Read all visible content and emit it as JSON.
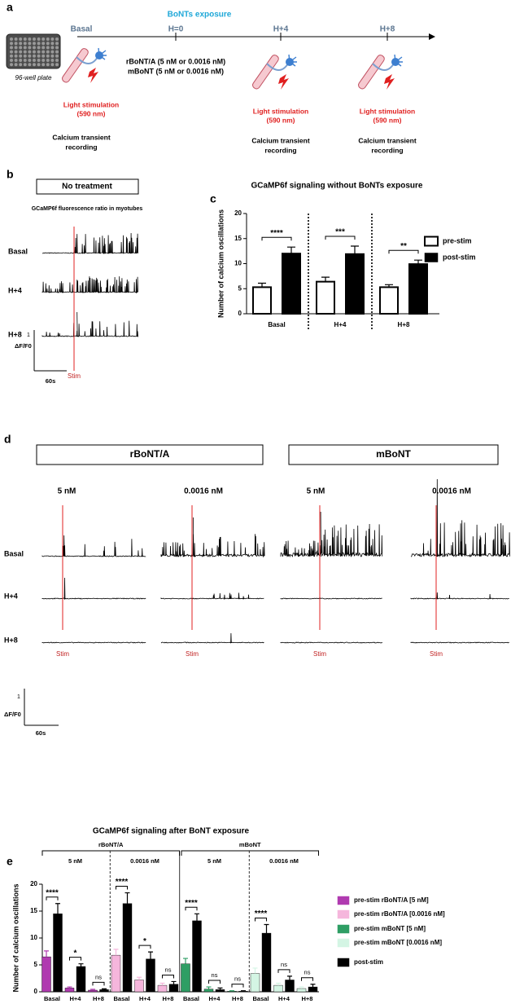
{
  "panel_labels": [
    "a",
    "b",
    "c",
    "d",
    "e"
  ],
  "panel_a": {
    "exposure": "BoNTs exposure",
    "timepoints": [
      "Basal",
      "H=0",
      "H+4",
      "H+8"
    ],
    "plate": "96-well plate",
    "treatments": [
      "rBoNT/A (5 nM or 0.0016 nM)",
      "mBoNT (5 nM or 0.0016 nM)"
    ],
    "stimulation": "Light stimulation",
    "wavelength": "(590 nm)",
    "recording": [
      "Calcium transient",
      "recording"
    ]
  },
  "panel_b": {
    "box": "No treatment",
    "subtitle": "GCaMP6f fluorescence ratio in myotubes",
    "rows": [
      "Basal",
      "H+4",
      "H+8"
    ],
    "stim": "Stim",
    "scale_y": "1",
    "scale_y_unit": "ΔF/F0",
    "scale_x": "60s"
  },
  "panel_d": {
    "groups": [
      "rBoNT/A",
      "mBoNT"
    ],
    "concentrations": [
      "5 nM",
      "0.0016 nM",
      "5 nM",
      "0.0016 nM"
    ],
    "rows": [
      "Basal",
      "H+4",
      "H+8"
    ],
    "stim": "Stim",
    "scale_y": "1",
    "scale_y_unit": "ΔF/F0",
    "scale_x": "60s"
  },
  "chart_data": [
    {
      "type": "bar",
      "title": "GCaMP6f signaling without BoNTs exposure",
      "y_label": "Number of calcium oscillations",
      "categories": [
        "Basal",
        "H+4",
        "H+8"
      ],
      "series": [
        {
          "name": "pre-stim",
          "color": "#ffffff",
          "values": [
            5.3,
            6.4,
            5.3
          ],
          "errors": [
            0.8,
            0.9,
            0.5
          ]
        },
        {
          "name": "post-stim",
          "color": "#000000",
          "values": [
            12,
            11.9,
            9.9
          ],
          "errors": [
            1.3,
            1.6,
            0.8
          ]
        }
      ],
      "significance": [
        "****",
        "***",
        "**"
      ],
      "ylim": [
        0,
        20
      ],
      "yticks": [
        0,
        5,
        10,
        15,
        20
      ],
      "legend": "right"
    },
    {
      "type": "bar",
      "title": "GCaMP6f signaling after BoNT exposure",
      "y_label": "Number of calcium oscillations",
      "groups": [
        {
          "name": "rBoNT/A",
          "subgroups": [
            "5 nM",
            "0.0016 nM"
          ]
        },
        {
          "name": "mBoNT",
          "subgroups": [
            "5 nM",
            "0.0016 nM"
          ]
        }
      ],
      "categories": [
        "Basal",
        "H+4",
        "H+8",
        "Basal",
        "H+4",
        "H+8",
        "Basal",
        "H+4",
        "H+8",
        "Basal",
        "H+4",
        "H+8"
      ],
      "series": [
        {
          "name": "pre-stim rBoNT/A [5 nM]",
          "color": "#b03ab0",
          "values": [
            6.5,
            0.7,
            0.3,
            null,
            null,
            null,
            null,
            null,
            null,
            null,
            null,
            null
          ],
          "errors": [
            1.1,
            0.2,
            0.15,
            null,
            null,
            null,
            null,
            null,
            null,
            null,
            null,
            null
          ]
        },
        {
          "name": "pre-stim rBoNT/A [0.0016 nM]",
          "color": "#f5b6dc",
          "values": [
            null,
            null,
            null,
            6.8,
            2.2,
            1.2,
            null,
            null,
            null,
            null,
            null,
            null
          ],
          "errors": [
            null,
            null,
            null,
            1.1,
            0.5,
            0.4,
            null,
            null,
            null,
            null,
            null,
            null
          ]
        },
        {
          "name": "pre-stim mBoNT [5 nM]",
          "color": "#2e9e64",
          "values": [
            null,
            null,
            null,
            null,
            null,
            null,
            5.2,
            0.5,
            0.1,
            null,
            null,
            null
          ],
          "errors": [
            null,
            null,
            null,
            null,
            null,
            null,
            1.0,
            0.4,
            0.1,
            null,
            null,
            null
          ]
        },
        {
          "name": "pre-stim mBoNT [0.0016 nM]",
          "color": "#d4f5e4",
          "values": [
            null,
            null,
            null,
            null,
            null,
            null,
            null,
            null,
            null,
            3.4,
            1.2,
            0.6
          ],
          "errors": [
            null,
            null,
            null,
            null,
            null,
            null,
            null,
            null,
            null,
            1.0,
            0.4,
            0.3
          ]
        },
        {
          "name": "post-stim",
          "color": "#000000",
          "values": [
            14.5,
            4.7,
            0.4,
            16.4,
            6.1,
            1.4,
            13.2,
            0.4,
            0.1,
            10.9,
            2.2,
            0.9
          ],
          "errors": [
            1.9,
            0.5,
            0.15,
            2.0,
            1.3,
            0.5,
            1.3,
            0.3,
            0.1,
            1.6,
            0.7,
            0.5
          ]
        }
      ],
      "significance": [
        "****",
        "*",
        "ns",
        "****",
        "*",
        "ns",
        "****",
        "ns",
        "ns",
        "****",
        "ns",
        "ns"
      ],
      "ylim": [
        0,
        20
      ],
      "yticks": [
        0,
        5,
        10,
        15,
        20
      ],
      "legend": "right"
    }
  ]
}
